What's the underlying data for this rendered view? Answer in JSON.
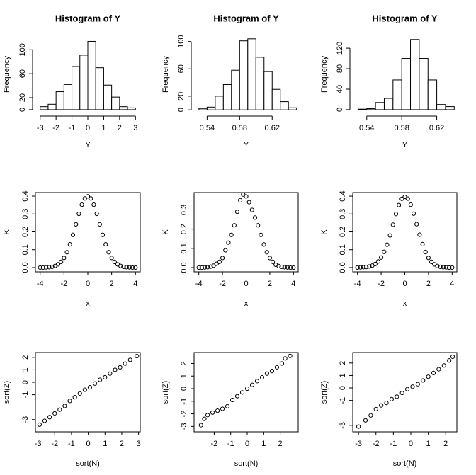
{
  "chart_data": [
    {
      "type": "histogram",
      "title": "Histogram of Y",
      "x_label": "Y",
      "y_label": "Frequency",
      "bins": [
        -3,
        -2.5,
        -2,
        -1.5,
        -1,
        -0.5,
        0,
        0.5,
        1,
        1.5,
        2,
        2.5,
        3
      ],
      "values": [
        5,
        9,
        30,
        42,
        72,
        91,
        114,
        70,
        41,
        21,
        5,
        3
      ],
      "xlim": [
        -3.3,
        3.3
      ],
      "ylim": [
        -6,
        124
      ],
      "xticks": [
        -3,
        -2,
        -1,
        0,
        1,
        2,
        3
      ],
      "yticks": [
        0,
        20,
        60,
        100
      ],
      "color": "#ffffff",
      "frame": false
    },
    {
      "type": "histogram",
      "title": "Histogram of Y",
      "x_label": "Y",
      "y_label": "Frequency",
      "bins": [
        0.53,
        0.54,
        0.55,
        0.56,
        0.57,
        0.58,
        0.59,
        0.6,
        0.61,
        0.62,
        0.63,
        0.64,
        0.65
      ],
      "values": [
        2,
        4,
        20,
        37,
        58,
        101,
        104,
        77,
        56,
        30,
        12,
        3
      ],
      "xlim": [
        0.524,
        0.652
      ],
      "ylim": [
        -5,
        109
      ],
      "xticks": [
        0.54,
        0.58,
        0.62
      ],
      "yticks": [
        0,
        20,
        60,
        100
      ],
      "color": "#ffffff",
      "frame": false
    },
    {
      "type": "histogram",
      "title": "Histogram of Y",
      "x_label": "Y",
      "y_label": "Frequency",
      "bins": [
        0.53,
        0.54,
        0.55,
        0.56,
        0.57,
        0.58,
        0.59,
        0.6,
        0.61,
        0.62,
        0.63,
        0.64
      ],
      "values": [
        1,
        2,
        14,
        22,
        58,
        100,
        137,
        100,
        58,
        10,
        6
      ],
      "xlim": [
        0.524,
        0.643
      ],
      "ylim": [
        -7,
        145
      ],
      "xticks": [
        0.54,
        0.58,
        0.62
      ],
      "yticks": [
        0,
        40,
        80,
        120
      ],
      "color": "#ffffff",
      "frame": false
    },
    {
      "type": "scatter",
      "x_label": "x",
      "y_label": "K",
      "x": [
        -4,
        -3.75,
        -3.5,
        -3.25,
        -3,
        -2.75,
        -2.5,
        -2.25,
        -2,
        -1.75,
        -1.5,
        -1.25,
        -1,
        -0.75,
        -0.5,
        -0.25,
        0,
        0.25,
        0.5,
        0.75,
        1,
        1.25,
        1.5,
        1.75,
        2,
        2.25,
        2.5,
        2.75,
        3,
        3.25,
        3.5,
        3.75,
        4
      ],
      "values": [
        0,
        0,
        0.001,
        0.002,
        0.004,
        0.009,
        0.018,
        0.032,
        0.054,
        0.086,
        0.13,
        0.183,
        0.242,
        0.301,
        0.352,
        0.387,
        0.399,
        0.387,
        0.352,
        0.301,
        0.242,
        0.183,
        0.13,
        0.086,
        0.054,
        0.032,
        0.018,
        0.009,
        0.004,
        0.002,
        0.001,
        0,
        0
      ],
      "xlim": [
        -4.4,
        4.4
      ],
      "ylim": [
        -0.024,
        0.42
      ],
      "xticks": [
        -4,
        -2,
        0,
        2,
        4
      ],
      "yticks": [
        {
          "value": 0,
          "label": "0.0"
        },
        0.1,
        0.2,
        0.3,
        0.4
      ],
      "color": "#000000",
      "frame": true
    },
    {
      "type": "scatter",
      "x_label": "x",
      "y_label": "K",
      "x": [
        -4,
        -3.75,
        -3.5,
        -3.25,
        -3,
        -2.75,
        -2.5,
        -2.25,
        -2,
        -1.75,
        -1.5,
        -1.25,
        -1,
        -0.75,
        -0.5,
        -0.25,
        0,
        0.25,
        0.5,
        0.75,
        1,
        1.25,
        1.5,
        1.75,
        2,
        2.25,
        2.5,
        2.75,
        3,
        3.25,
        3.5,
        3.75,
        4
      ],
      "values": [
        0,
        0,
        0.001,
        0.002,
        0.005,
        0.01,
        0.02,
        0.03,
        0.05,
        0.09,
        0.13,
        0.17,
        0.22,
        0.29,
        0.35,
        0.38,
        0.37,
        0.34,
        0.3,
        0.26,
        0.22,
        0.17,
        0.12,
        0.08,
        0.05,
        0.03,
        0.015,
        0.008,
        0.004,
        0.002,
        0.001,
        0,
        0
      ],
      "xlim": [
        -4.4,
        4.4
      ],
      "ylim": [
        -0.022,
        0.39
      ],
      "xticks": [
        -4,
        -2,
        0,
        2,
        4
      ],
      "yticks": [
        {
          "value": 0,
          "label": "0.0"
        },
        0.1,
        0.2,
        0.3
      ],
      "color": "#000000",
      "frame": true
    },
    {
      "type": "scatter",
      "x_label": "x",
      "y_label": "K",
      "x": [
        -4,
        -3.75,
        -3.5,
        -3.25,
        -3,
        -2.75,
        -2.5,
        -2.25,
        -2,
        -1.75,
        -1.5,
        -1.25,
        -1,
        -0.75,
        -0.5,
        -0.25,
        0,
        0.25,
        0.5,
        0.75,
        1,
        1.25,
        1.5,
        1.75,
        2,
        2.25,
        2.5,
        2.75,
        3,
        3.25,
        3.5,
        3.75,
        4
      ],
      "values": [
        0,
        0.001,
        0.002,
        0.003,
        0.006,
        0.011,
        0.02,
        0.034,
        0.056,
        0.088,
        0.128,
        0.18,
        0.24,
        0.3,
        0.35,
        0.385,
        0.396,
        0.386,
        0.352,
        0.302,
        0.243,
        0.184,
        0.131,
        0.087,
        0.054,
        0.032,
        0.018,
        0.009,
        0.004,
        0.002,
        0.001,
        0,
        0
      ],
      "xlim": [
        -4.4,
        4.4
      ],
      "ylim": [
        -0.024,
        0.42
      ],
      "xticks": [
        -4,
        -2,
        0,
        2,
        4
      ],
      "yticks": [
        {
          "value": 0,
          "label": "0.0"
        },
        0.1,
        0.2,
        0.3,
        0.4
      ],
      "color": "#000000",
      "frame": true
    },
    {
      "type": "scatter",
      "x_label": "sort(N)",
      "y_label": "sort(Z)",
      "x": [
        -2.9,
        -2.6,
        -2.3,
        -2.0,
        -1.7,
        -1.4,
        -1.1,
        -0.8,
        -0.5,
        -0.2,
        0.1,
        0.4,
        0.7,
        1.0,
        1.3,
        1.6,
        1.9,
        2.2,
        2.5,
        2.9
      ],
      "values": [
        -3.4,
        -3.1,
        -2.8,
        -2.5,
        -2.2,
        -1.9,
        -1.5,
        -1.2,
        -0.9,
        -0.6,
        -0.4,
        -0.1,
        0.2,
        0.4,
        0.7,
        1.0,
        1.2,
        1.5,
        1.8,
        2.1
      ],
      "xlim": [
        -3.15,
        3.1
      ],
      "ylim": [
        -3.98,
        2.39
      ],
      "xticks": [
        -3,
        -2,
        -1,
        0,
        1,
        2,
        3
      ],
      "yticks": [
        -3,
        -1,
        0,
        1,
        2
      ],
      "color": "#000000",
      "frame": true
    },
    {
      "type": "scatter",
      "x_label": "sort(N)",
      "y_label": "sort(Z)",
      "x": [
        -2.8,
        -2.6,
        -2.4,
        -2.1,
        -1.8,
        -1.5,
        -1.2,
        -0.9,
        -0.6,
        -0.3,
        0,
        0.3,
        0.6,
        0.9,
        1.2,
        1.5,
        1.8,
        2.1,
        2.3,
        2.6
      ],
      "values": [
        -2.9,
        -2.4,
        -2.1,
        -1.9,
        -1.75,
        -1.6,
        -1.4,
        -0.9,
        -0.6,
        -0.3,
        0,
        0.3,
        0.6,
        0.9,
        1.2,
        1.4,
        1.7,
        2.0,
        2.4,
        2.6
      ],
      "xlim": [
        -3.22,
        3.09
      ],
      "ylim": [
        -3.43,
        2.87
      ],
      "xticks": [
        -2,
        -1,
        0,
        1,
        2
      ],
      "yticks": [
        -3,
        -2,
        -1,
        0,
        1,
        2
      ],
      "color": "#000000",
      "frame": true
    },
    {
      "type": "scatter",
      "x_label": "sort(N)",
      "y_label": "sort(Z)",
      "x": [
        -3.0,
        -2.6,
        -2.3,
        -2.0,
        -1.7,
        -1.4,
        -1.1,
        -0.8,
        -0.5,
        -0.2,
        0.1,
        0.4,
        0.7,
        1.0,
        1.3,
        1.6,
        1.9,
        2.2,
        2.4
      ],
      "values": [
        -3.1,
        -2.6,
        -2.2,
        -1.7,
        -1.4,
        -1.2,
        -0.9,
        -0.7,
        -0.4,
        -0.1,
        0.1,
        0.3,
        0.6,
        0.9,
        1.2,
        1.5,
        1.8,
        2.2,
        2.5
      ],
      "xlim": [
        -3.33,
        2.64
      ],
      "ylim": [
        -3.52,
        2.84
      ],
      "xticks": [
        -3,
        -2,
        -1,
        0,
        1,
        2
      ],
      "yticks": [
        -3,
        -1,
        0,
        1,
        2
      ],
      "color": "#000000",
      "frame": true
    }
  ]
}
